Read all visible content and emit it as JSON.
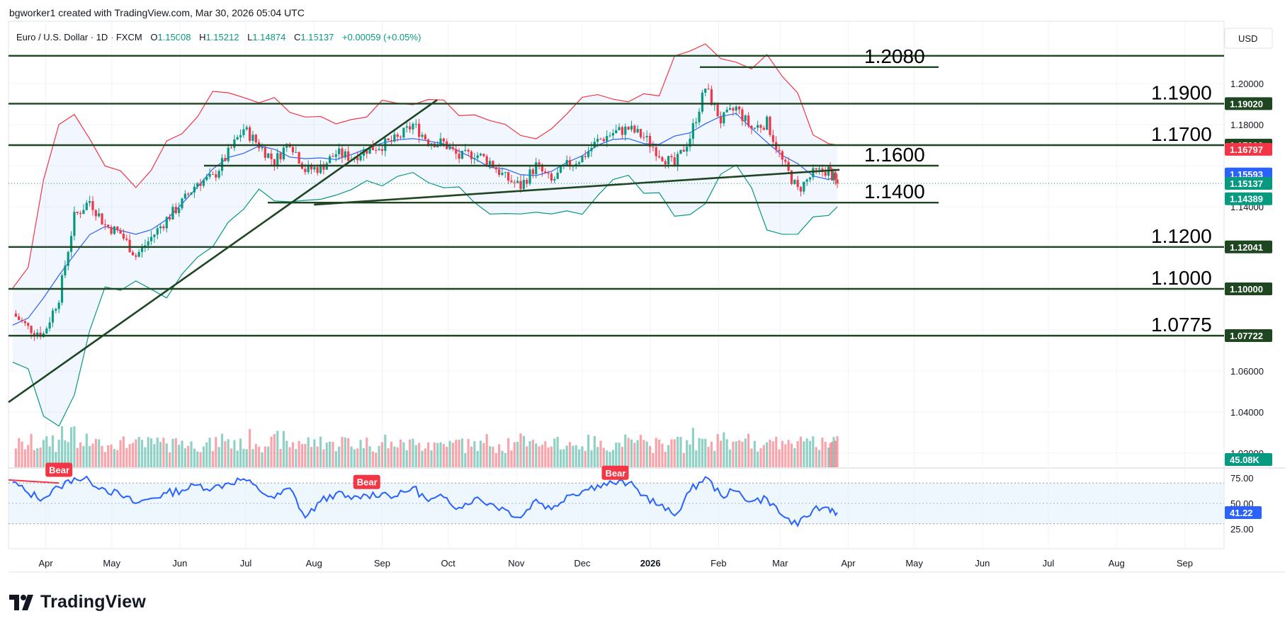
{
  "header": {
    "credit": "bgworker1 created with TradingView.com, Mar 30, 2026 05:04 UTC",
    "symbol": "Euro / U.S. Dollar · 1D · FXCM",
    "open_label": "O",
    "open": "1.15008",
    "high_label": "H",
    "high": "1.15212",
    "low_label": "L",
    "low": "1.14874",
    "close_label": "C",
    "close": "1.15137",
    "change": "+0.00059 (+0.05%)"
  },
  "currency_button": "USD",
  "brand": {
    "name": "TradingView",
    "icon": "tradingview-logo-icon"
  },
  "colors": {
    "up": "#089981",
    "down": "#f23645",
    "ma": "#2962ff",
    "upper_band": "#f23645",
    "lower_band": "#089981",
    "level_line": "#1e4620",
    "rsi": "#2962ff",
    "rsi_fill": "#e3f2fd"
  },
  "chart_data": {
    "type": "candlestick",
    "x_ticks": [
      "Apr",
      "May",
      "Jun",
      "Jul",
      "Aug",
      "Sep",
      "Oct",
      "Nov",
      "Dec",
      "2026",
      "Feb",
      "Mar",
      "Apr",
      "May",
      "Jun",
      "Jul",
      "Aug",
      "Sep"
    ],
    "y_ticks": [
      "1.20000",
      "1.18000",
      "1.14000",
      "1.06000",
      "1.04000",
      "1.02000"
    ],
    "ylim": [
      1.01,
      1.22
    ],
    "price_tags": [
      {
        "value": "1.19020",
        "color": "#1e4620"
      },
      {
        "value": "1.17000",
        "color": "#1e4620"
      },
      {
        "value": "1.16797",
        "color": "#f23645"
      },
      {
        "value": "1.15593",
        "color": "#2962ff"
      },
      {
        "value": "1.15137",
        "color": "#089981"
      },
      {
        "value": "1.14389",
        "color": "#089981"
      },
      {
        "value": "1.12041",
        "color": "#1e4620"
      },
      {
        "value": "1.10000",
        "color": "#1e4620"
      },
      {
        "value": "1.07722",
        "color": "#1e4620"
      }
    ],
    "levels": [
      {
        "label": "",
        "value": 1.2135
      },
      {
        "label": "1.2080",
        "value": 1.208
      },
      {
        "label": "1.1900",
        "value": 1.1902
      },
      {
        "label": "1.1700",
        "value": 1.17
      },
      {
        "label": "1.1600",
        "value": 1.16
      },
      {
        "label": "1.1400",
        "value": 1.142
      },
      {
        "label": "1.1200",
        "value": 1.1204
      },
      {
        "label": "1.1000",
        "value": 1.1
      },
      {
        "label": "1.0775",
        "value": 1.0772
      }
    ],
    "trendlines": [
      {
        "from": [
          "2025-03-18",
          1.047
        ],
        "to": [
          "2025-09-26",
          1.192
        ]
      },
      {
        "from": [
          "2025-08-01",
          1.141
        ],
        "to": [
          "2026-03-28",
          1.158
        ]
      }
    ],
    "close_path": [
      [
        "2025-03-17",
        1.088
      ],
      [
        "2025-03-24",
        1.081
      ],
      [
        "2025-03-31",
        1.078
      ],
      [
        "2025-04-07",
        1.096
      ],
      [
        "2025-04-14",
        1.135
      ],
      [
        "2025-04-21",
        1.143
      ],
      [
        "2025-04-28",
        1.131
      ],
      [
        "2025-05-05",
        1.127
      ],
      [
        "2025-05-12",
        1.116
      ],
      [
        "2025-05-19",
        1.125
      ],
      [
        "2025-05-26",
        1.134
      ],
      [
        "2025-06-02",
        1.142
      ],
      [
        "2025-06-09",
        1.152
      ],
      [
        "2025-06-16",
        1.154
      ],
      [
        "2025-06-23",
        1.166
      ],
      [
        "2025-06-30",
        1.178
      ],
      [
        "2025-07-07",
        1.17
      ],
      [
        "2025-07-14",
        1.162
      ],
      [
        "2025-07-21",
        1.172
      ],
      [
        "2025-07-28",
        1.158
      ],
      [
        "2025-08-04",
        1.159
      ],
      [
        "2025-08-11",
        1.166
      ],
      [
        "2025-08-18",
        1.164
      ],
      [
        "2025-08-25",
        1.168
      ],
      [
        "2025-09-01",
        1.17
      ],
      [
        "2025-09-08",
        1.173
      ],
      [
        "2025-09-15",
        1.18
      ],
      [
        "2025-09-22",
        1.172
      ],
      [
        "2025-09-29",
        1.171
      ],
      [
        "2025-10-06",
        1.164
      ],
      [
        "2025-10-13",
        1.166
      ],
      [
        "2025-10-20",
        1.162
      ],
      [
        "2025-10-27",
        1.154
      ],
      [
        "2025-11-03",
        1.15
      ],
      [
        "2025-11-10",
        1.16
      ],
      [
        "2025-11-17",
        1.152
      ],
      [
        "2025-11-24",
        1.16
      ],
      [
        "2025-12-01",
        1.164
      ],
      [
        "2025-12-08",
        1.172
      ],
      [
        "2025-12-15",
        1.176
      ],
      [
        "2025-12-22",
        1.178
      ],
      [
        "2025-12-29",
        1.174
      ],
      [
        "2026-01-05",
        1.166
      ],
      [
        "2026-01-12",
        1.16
      ],
      [
        "2026-01-19",
        1.174
      ],
      [
        "2026-01-26",
        1.198
      ],
      [
        "2026-02-02",
        1.182
      ],
      [
        "2026-02-09",
        1.188
      ],
      [
        "2026-02-16",
        1.178
      ],
      [
        "2026-02-23",
        1.181
      ],
      [
        "2026-03-02",
        1.162
      ],
      [
        "2026-03-09",
        1.148
      ],
      [
        "2026-03-16",
        1.156
      ],
      [
        "2026-03-23",
        1.158
      ],
      [
        "2026-03-27",
        1.151
      ]
    ],
    "volume_label": "45.08K",
    "rsi": {
      "y_ticks": [
        "75.00",
        "50.00",
        "25.00"
      ],
      "upper": 70,
      "lower": 30,
      "ylim": [
        20,
        80
      ],
      "value_label": "41.22",
      "points": [
        [
          "2025-03-17",
          71
        ],
        [
          "2025-03-24",
          60
        ],
        [
          "2025-03-31",
          55
        ],
        [
          "2025-04-07",
          66
        ],
        [
          "2025-04-14",
          75
        ],
        [
          "2025-04-21",
          72
        ],
        [
          "2025-04-28",
          64
        ],
        [
          "2025-05-05",
          58
        ],
        [
          "2025-05-12",
          50
        ],
        [
          "2025-05-19",
          55
        ],
        [
          "2025-05-26",
          60
        ],
        [
          "2025-06-02",
          63
        ],
        [
          "2025-06-09",
          68
        ],
        [
          "2025-06-16",
          65
        ],
        [
          "2025-06-23",
          70
        ],
        [
          "2025-06-30",
          74
        ],
        [
          "2025-07-07",
          63
        ],
        [
          "2025-07-14",
          55
        ],
        [
          "2025-07-21",
          65
        ],
        [
          "2025-07-28",
          36
        ],
        [
          "2025-08-04",
          52
        ],
        [
          "2025-08-11",
          60
        ],
        [
          "2025-08-18",
          54
        ],
        [
          "2025-08-25",
          58
        ],
        [
          "2025-09-01",
          60
        ],
        [
          "2025-09-08",
          57
        ],
        [
          "2025-09-15",
          66
        ],
        [
          "2025-09-22",
          52
        ],
        [
          "2025-09-29",
          56
        ],
        [
          "2025-10-06",
          46
        ],
        [
          "2025-10-13",
          55
        ],
        [
          "2025-10-20",
          50
        ],
        [
          "2025-10-27",
          44
        ],
        [
          "2025-11-03",
          36
        ],
        [
          "2025-11-10",
          54
        ],
        [
          "2025-11-17",
          44
        ],
        [
          "2025-11-24",
          58
        ],
        [
          "2025-12-01",
          62
        ],
        [
          "2025-12-08",
          68
        ],
        [
          "2025-12-15",
          70
        ],
        [
          "2025-12-22",
          70
        ],
        [
          "2025-12-29",
          58
        ],
        [
          "2026-01-05",
          48
        ],
        [
          "2026-01-12",
          38
        ],
        [
          "2026-01-19",
          62
        ],
        [
          "2026-01-26",
          76
        ],
        [
          "2026-02-02",
          58
        ],
        [
          "2026-02-09",
          62
        ],
        [
          "2026-02-16",
          52
        ],
        [
          "2026-02-23",
          55
        ],
        [
          "2026-03-02",
          38
        ],
        [
          "2026-03-09",
          28
        ],
        [
          "2026-03-16",
          44
        ],
        [
          "2026-03-23",
          46
        ],
        [
          "2026-03-27",
          41
        ]
      ],
      "signals": [
        {
          "label": "Bear",
          "date": "2025-04-07",
          "value": 74
        },
        {
          "label": "Bear",
          "date": "2025-08-25",
          "value": 62
        },
        {
          "label": "Bear",
          "date": "2025-12-16",
          "value": 71
        }
      ]
    }
  }
}
